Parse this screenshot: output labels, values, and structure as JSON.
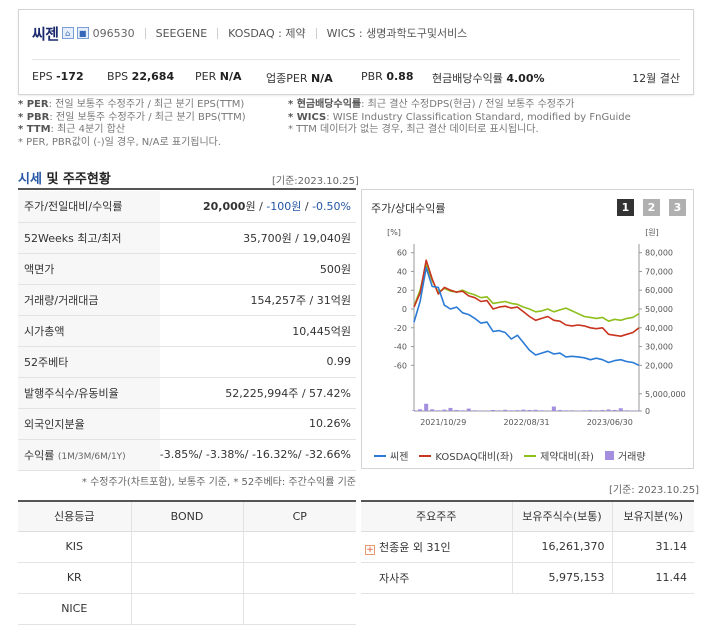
{
  "company": {
    "name": "씨젠",
    "code": "096530",
    "eng_name": "SEEGENE",
    "market": "KOSDAQ : 제약",
    "wics": "WICS : 생명과학도구및서비스",
    "icons": [
      "home-icon",
      "ir-icon"
    ]
  },
  "metrics": {
    "eps_label": "EPS",
    "eps_value": "-172",
    "bps_label": "BPS",
    "bps_value": "22,684",
    "per_label": "PER",
    "per_value": "N/A",
    "ind_per_label": "업종PER",
    "ind_per_value": "N/A",
    "pbr_label": "PBR",
    "pbr_value": "0.88",
    "div_label": "현금배당수익률",
    "div_value": "4.00%",
    "fiscal": "12월 결산"
  },
  "notes": {
    "left": [
      {
        "key": "* PER",
        "text": ": 전일 보통주 수정주가 / 최근 분기 EPS(TTM)"
      },
      {
        "key": "* PBR",
        "text": ": 전일 보통주 수정주가 / 최근 분기 BPS(TTM)"
      },
      {
        "key": "* TTM",
        "text": ": 최근 4분기 합산"
      },
      {
        "key": "",
        "text": "* PER, PBR값이 (-)일 경우, N/A로 표기됩니다."
      }
    ],
    "right": [
      {
        "key": "* 현금배당수익률",
        "text": ": 최근 결산 수정DPS(현금) / 전일 보통주 수정주가"
      },
      {
        "key": "* WICS",
        "text": ": WISE Industry Classification Standard, modified by FnGuide"
      },
      {
        "key": "",
        "text": "* TTM 데이터가 없는 경우, 최근 결산 데이터로 표시됩니다."
      }
    ]
  },
  "section": {
    "title_hl": "시세",
    "title_rest": " 및 주주현황",
    "base_date": "[기준:2023.10.25]"
  },
  "price_table": [
    {
      "label": "주가/전일대비/수익률",
      "value_main": "20,000",
      "value_unit": "원 / ",
      "value_b1": "-100원",
      "value_sep": " / ",
      "value_b2": "-0.50%"
    },
    {
      "label": "52Weeks 최고/최저",
      "value": "35,700원 / 19,040원"
    },
    {
      "label": "액면가",
      "value": "500원"
    },
    {
      "label": "거래량/거래대금",
      "value": "154,257주 / 31억원"
    },
    {
      "label": "시가총액",
      "value": "10,445억원"
    },
    {
      "label": "52주베타",
      "value": "0.99"
    },
    {
      "label": "발행주식수/유동비율",
      "value": "52,225,994주 / 57.42%"
    },
    {
      "label": "외국인지분율",
      "value": "10.26%"
    },
    {
      "label": "수익률",
      "label_small": "(1M/3M/6M/1Y)",
      "value": "-3.85%/ -3.38%/ -16.32%/ -32.66%"
    }
  ],
  "table_footnote": "* 수정주가(차트포함), 보통주 기준, * 52주베타: 주간수익률 기준",
  "chart_panel": {
    "title": "주가/상대수익률",
    "tabs": [
      "1",
      "2",
      "3"
    ],
    "active_tab": "1",
    "left_unit": "[%]",
    "right_unit": "[원]"
  },
  "chart_data": {
    "type": "line",
    "x_labels": [
      "2021/10/29",
      "2022/08/31",
      "2023/06/30"
    ],
    "left_axis": {
      "label": "[%]",
      "ticks": [
        60,
        40,
        20,
        0,
        -20,
        -40,
        -60
      ],
      "range": [
        -65,
        65
      ]
    },
    "right_axis": {
      "label": "[원]",
      "ticks": [
        80000,
        70000,
        60000,
        50000,
        40000,
        30000,
        20000
      ],
      "range": [
        17500,
        82500
      ]
    },
    "volume_axis": {
      "ticks": [
        5000000,
        0
      ],
      "tick_labels": [
        "5,000,000",
        "0"
      ],
      "range": [
        0,
        5800000
      ]
    },
    "series": [
      {
        "name": "씨젠",
        "axis": "right",
        "color": "#2b7bd6",
        "values": [
          43000,
          54000,
          72000,
          62000,
          61500,
          52000,
          50000,
          51000,
          48000,
          47000,
          45000,
          42500,
          43000,
          38000,
          38500,
          37500,
          34000,
          36000,
          32000,
          28000,
          25500,
          26500,
          27500,
          26000,
          26500,
          24500,
          24800,
          24500,
          24000,
          23000,
          23800,
          23000,
          21500,
          22500,
          23000,
          22000,
          21500,
          20000
        ]
      },
      {
        "name": "KOSDAQ대비(좌)",
        "axis": "left",
        "color": "#c8341e",
        "values": [
          2,
          17,
          52,
          32,
          16,
          23,
          20,
          18,
          19,
          14,
          12,
          8,
          9,
          0,
          2,
          3,
          1,
          2,
          -3,
          -8,
          -12,
          -10,
          -8,
          -12,
          -13,
          -17,
          -18,
          -17,
          -18,
          -20,
          -21,
          -20,
          -27,
          -28,
          -29,
          -27,
          -25,
          -20
        ]
      },
      {
        "name": "제약대비(좌)",
        "axis": "left",
        "color": "#8ebf1c",
        "values": [
          3,
          20,
          48,
          30,
          18,
          22,
          19,
          18,
          20,
          17,
          15,
          12,
          13,
          6,
          7,
          8,
          6,
          5,
          2,
          0,
          -3,
          -2,
          0,
          -3,
          -1,
          1,
          -2,
          -5,
          -8,
          -9,
          -10,
          -9,
          -13,
          -11,
          -12,
          -10,
          -9,
          -5
        ]
      },
      {
        "name": "거래량",
        "axis": "volume",
        "type": "bar",
        "color": "#a48ee0",
        "values": [
          200000,
          500000,
          2100000,
          500000,
          200000,
          400000,
          900000,
          300000,
          200000,
          700000,
          200000,
          150000,
          150000,
          300000,
          200000,
          350000,
          200000,
          250000,
          400000,
          300000,
          350000,
          200000,
          150000,
          1300000,
          300000,
          200000,
          200000,
          150000,
          200000,
          250000,
          200000,
          300000,
          450000,
          300000,
          800000,
          200000,
          150000,
          150000
        ]
      }
    ]
  },
  "legend": [
    {
      "label": "씨젠",
      "color": "#2b7bd6",
      "kind": "line"
    },
    {
      "label": "KOSDAQ대비(좌)",
      "color": "#c8341e",
      "kind": "line"
    },
    {
      "label": "제약대비(좌)",
      "color": "#8ebf1c",
      "kind": "line"
    },
    {
      "label": "거래량",
      "color": "#a48ee0",
      "kind": "box"
    }
  ],
  "bottom_base_date": "[기준: 2023.10.25]",
  "credit_table": {
    "headers": [
      "신용등급",
      "BOND",
      "CP"
    ],
    "rows": [
      [
        "KIS",
        "",
        ""
      ],
      [
        "KR",
        "",
        ""
      ],
      [
        "NICE",
        "",
        ""
      ]
    ]
  },
  "share_table": {
    "headers": [
      "주요주주",
      "보유주식수(보통)",
      "보유지분(%)"
    ],
    "rows": [
      {
        "name": "천종윤 외 31인",
        "shares": "16,261,370",
        "pct": "31.14",
        "expand": true
      },
      {
        "name": "자사주",
        "shares": "5,975,153",
        "pct": "11.44",
        "expand": false
      }
    ]
  }
}
